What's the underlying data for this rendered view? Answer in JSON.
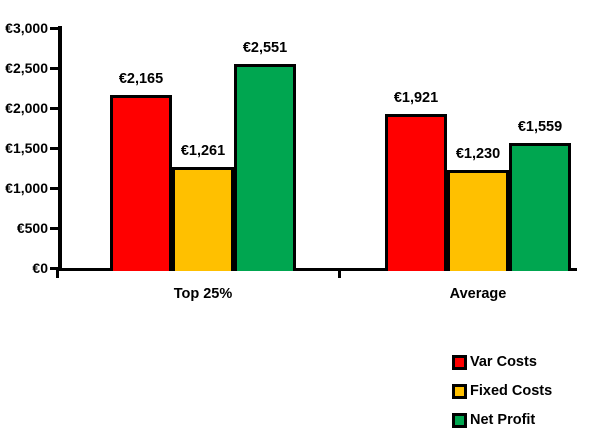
{
  "chart_data": {
    "type": "bar",
    "title": "",
    "xlabel": "",
    "ylabel": "",
    "categories": [
      "Top 25%",
      "Average"
    ],
    "series": [
      {
        "name": "Var Costs",
        "color": "#FF0000",
        "values": [
          2165,
          1921
        ],
        "value_labels": [
          "€2,165",
          "€1,921"
        ]
      },
      {
        "name": "Fixed Costs",
        "color": "#FFC000",
        "values": [
          1261,
          1230
        ],
        "value_labels": [
          "€1,261",
          "€1,230"
        ]
      },
      {
        "name": "Net Profit",
        "color": "#00A650",
        "values": [
          2551,
          1559
        ],
        "value_labels": [
          "€2,551",
          "€1,559"
        ]
      }
    ],
    "ylim": [
      0,
      3000
    ],
    "ytick_step": 500,
    "ytick_labels": [
      "€0",
      "€500",
      "€1,000",
      "€1,500",
      "€2,000",
      "€2,500",
      "€3,000"
    ],
    "grid": false,
    "legend_position": "bottom-right",
    "currency_symbol": "€",
    "axis_color": "#000000",
    "text_color": "#000000",
    "background_color": "#FFFFFF"
  }
}
